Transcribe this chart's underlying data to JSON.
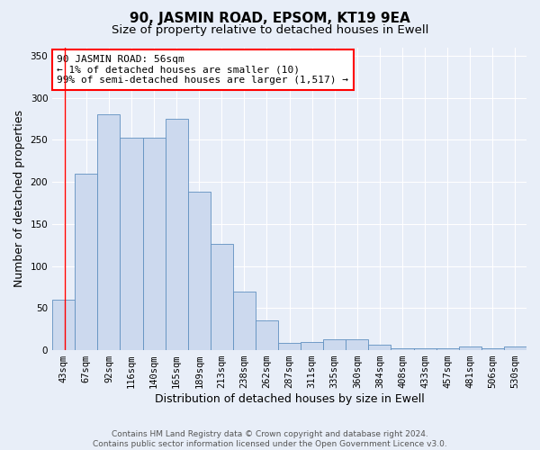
{
  "title": "90, JASMIN ROAD, EPSOM, KT19 9EA",
  "subtitle": "Size of property relative to detached houses in Ewell",
  "xlabel": "Distribution of detached houses by size in Ewell",
  "ylabel": "Number of detached properties",
  "bar_labels": [
    "43sqm",
    "67sqm",
    "92sqm",
    "116sqm",
    "140sqm",
    "165sqm",
    "189sqm",
    "213sqm",
    "238sqm",
    "262sqm",
    "287sqm",
    "311sqm",
    "335sqm",
    "360sqm",
    "384sqm",
    "408sqm",
    "433sqm",
    "457sqm",
    "481sqm",
    "506sqm",
    "530sqm"
  ],
  "bar_values": [
    60,
    210,
    280,
    252,
    252,
    275,
    188,
    126,
    70,
    35,
    9,
    10,
    13,
    13,
    6,
    2,
    2,
    2,
    4,
    2,
    4
  ],
  "bar_color": "#ccd9ee",
  "bar_edge_color": "#6090c0",
  "annotation_text": "90 JASMIN ROAD: 56sqm\n← 1% of detached houses are smaller (10)\n99% of semi-detached houses are larger (1,517) →",
  "annotation_box_color": "white",
  "annotation_box_edge": "red",
  "ylim": [
    0,
    360
  ],
  "yticks": [
    0,
    50,
    100,
    150,
    200,
    250,
    300,
    350
  ],
  "footer": "Contains HM Land Registry data © Crown copyright and database right 2024.\nContains public sector information licensed under the Open Government Licence v3.0.",
  "bg_color": "#e8eef8",
  "grid_color": "#ffffff",
  "title_fontsize": 11,
  "subtitle_fontsize": 9.5,
  "xlabel_fontsize": 9,
  "ylabel_fontsize": 9,
  "tick_fontsize": 7.5,
  "footer_fontsize": 6.5,
  "annot_fontsize": 8
}
